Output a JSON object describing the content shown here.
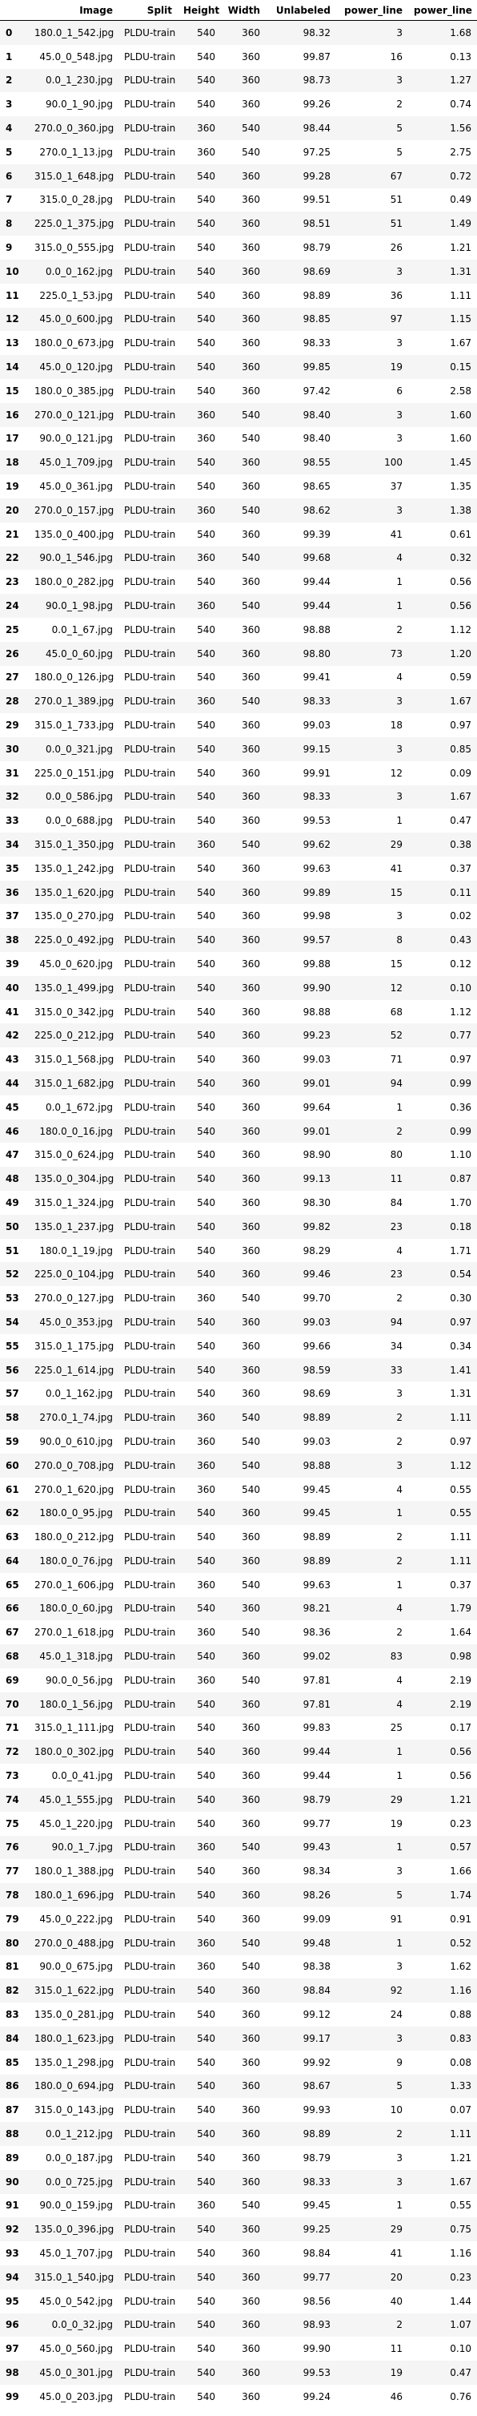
{
  "table": {
    "columns": [
      "",
      "Image",
      "Split",
      "Height",
      "Width",
      "Unlabeled",
      "power_line",
      "power_line"
    ],
    "rows": [
      [
        "0",
        "180.0_1_542.jpg",
        "PLDU-train",
        "540",
        "360",
        "98.32",
        "3",
        "1.68"
      ],
      [
        "1",
        "45.0_0_548.jpg",
        "PLDU-train",
        "540",
        "360",
        "99.87",
        "16",
        "0.13"
      ],
      [
        "2",
        "0.0_1_230.jpg",
        "PLDU-train",
        "540",
        "360",
        "98.73",
        "3",
        "1.27"
      ],
      [
        "3",
        "90.0_1_90.jpg",
        "PLDU-train",
        "540",
        "360",
        "99.26",
        "2",
        "0.74"
      ],
      [
        "4",
        "270.0_0_360.jpg",
        "PLDU-train",
        "360",
        "540",
        "98.44",
        "5",
        "1.56"
      ],
      [
        "5",
        "270.0_1_13.jpg",
        "PLDU-train",
        "360",
        "540",
        "97.25",
        "5",
        "2.75"
      ],
      [
        "6",
        "315.0_1_648.jpg",
        "PLDU-train",
        "540",
        "360",
        "99.28",
        "67",
        "0.72"
      ],
      [
        "7",
        "315.0_0_28.jpg",
        "PLDU-train",
        "540",
        "360",
        "99.51",
        "51",
        "0.49"
      ],
      [
        "8",
        "225.0_1_375.jpg",
        "PLDU-train",
        "540",
        "360",
        "98.51",
        "51",
        "1.49"
      ],
      [
        "9",
        "315.0_0_555.jpg",
        "PLDU-train",
        "540",
        "360",
        "98.79",
        "26",
        "1.21"
      ],
      [
        "10",
        "0.0_0_162.jpg",
        "PLDU-train",
        "540",
        "360",
        "98.69",
        "3",
        "1.31"
      ],
      [
        "11",
        "225.0_1_53.jpg",
        "PLDU-train",
        "540",
        "360",
        "98.89",
        "36",
        "1.11"
      ],
      [
        "12",
        "45.0_0_600.jpg",
        "PLDU-train",
        "540",
        "360",
        "98.85",
        "97",
        "1.15"
      ],
      [
        "13",
        "180.0_0_673.jpg",
        "PLDU-train",
        "540",
        "360",
        "98.33",
        "3",
        "1.67"
      ],
      [
        "14",
        "45.0_0_120.jpg",
        "PLDU-train",
        "540",
        "360",
        "99.85",
        "19",
        "0.15"
      ],
      [
        "15",
        "180.0_0_385.jpg",
        "PLDU-train",
        "540",
        "360",
        "97.42",
        "6",
        "2.58"
      ],
      [
        "16",
        "270.0_0_121.jpg",
        "PLDU-train",
        "360",
        "540",
        "98.40",
        "3",
        "1.60"
      ],
      [
        "17",
        "90.0_0_121.jpg",
        "PLDU-train",
        "360",
        "540",
        "98.40",
        "3",
        "1.60"
      ],
      [
        "18",
        "45.0_1_709.jpg",
        "PLDU-train",
        "540",
        "360",
        "98.55",
        "100",
        "1.45"
      ],
      [
        "19",
        "45.0_0_361.jpg",
        "PLDU-train",
        "540",
        "360",
        "98.65",
        "37",
        "1.35"
      ],
      [
        "20",
        "270.0_0_157.jpg",
        "PLDU-train",
        "360",
        "540",
        "98.62",
        "3",
        "1.38"
      ],
      [
        "21",
        "135.0_0_400.jpg",
        "PLDU-train",
        "540",
        "360",
        "99.39",
        "41",
        "0.61"
      ],
      [
        "22",
        "90.0_1_546.jpg",
        "PLDU-train",
        "360",
        "540",
        "99.68",
        "4",
        "0.32"
      ],
      [
        "23",
        "180.0_0_282.jpg",
        "PLDU-train",
        "540",
        "360",
        "99.44",
        "1",
        "0.56"
      ],
      [
        "24",
        "90.0_1_98.jpg",
        "PLDU-train",
        "360",
        "540",
        "99.44",
        "1",
        "0.56"
      ],
      [
        "25",
        "0.0_1_67.jpg",
        "PLDU-train",
        "540",
        "360",
        "98.88",
        "2",
        "1.12"
      ],
      [
        "26",
        "45.0_0_60.jpg",
        "PLDU-train",
        "540",
        "360",
        "98.80",
        "73",
        "1.20"
      ],
      [
        "27",
        "180.0_0_126.jpg",
        "PLDU-train",
        "540",
        "360",
        "99.41",
        "4",
        "0.59"
      ],
      [
        "28",
        "270.0_1_389.jpg",
        "PLDU-train",
        "360",
        "540",
        "98.33",
        "3",
        "1.67"
      ],
      [
        "29",
        "315.0_1_733.jpg",
        "PLDU-train",
        "540",
        "360",
        "99.03",
        "18",
        "0.97"
      ],
      [
        "30",
        "0.0_0_321.jpg",
        "PLDU-train",
        "540",
        "360",
        "99.15",
        "3",
        "0.85"
      ],
      [
        "31",
        "225.0_0_151.jpg",
        "PLDU-train",
        "540",
        "360",
        "99.91",
        "12",
        "0.09"
      ],
      [
        "32",
        "0.0_0_586.jpg",
        "PLDU-train",
        "540",
        "360",
        "98.33",
        "3",
        "1.67"
      ],
      [
        "33",
        "0.0_0_688.jpg",
        "PLDU-train",
        "540",
        "360",
        "99.53",
        "1",
        "0.47"
      ],
      [
        "34",
        "315.0_1_350.jpg",
        "PLDU-train",
        "360",
        "540",
        "99.62",
        "29",
        "0.38"
      ],
      [
        "35",
        "135.0_1_242.jpg",
        "PLDU-train",
        "540",
        "360",
        "99.63",
        "41",
        "0.37"
      ],
      [
        "36",
        "135.0_1_620.jpg",
        "PLDU-train",
        "540",
        "360",
        "99.89",
        "15",
        "0.11"
      ],
      [
        "37",
        "135.0_0_270.jpg",
        "PLDU-train",
        "540",
        "360",
        "99.98",
        "3",
        "0.02"
      ],
      [
        "38",
        "225.0_0_492.jpg",
        "PLDU-train",
        "540",
        "360",
        "99.57",
        "8",
        "0.43"
      ],
      [
        "39",
        "45.0_0_620.jpg",
        "PLDU-train",
        "540",
        "360",
        "99.88",
        "15",
        "0.12"
      ],
      [
        "40",
        "135.0_1_499.jpg",
        "PLDU-train",
        "540",
        "360",
        "99.90",
        "12",
        "0.10"
      ],
      [
        "41",
        "315.0_0_342.jpg",
        "PLDU-train",
        "540",
        "360",
        "98.88",
        "68",
        "1.12"
      ],
      [
        "42",
        "225.0_0_212.jpg",
        "PLDU-train",
        "540",
        "360",
        "99.23",
        "52",
        "0.77"
      ],
      [
        "43",
        "315.0_1_568.jpg",
        "PLDU-train",
        "540",
        "360",
        "99.03",
        "71",
        "0.97"
      ],
      [
        "44",
        "315.0_1_682.jpg",
        "PLDU-train",
        "540",
        "360",
        "99.01",
        "94",
        "0.99"
      ],
      [
        "45",
        "0.0_1_672.jpg",
        "PLDU-train",
        "540",
        "360",
        "99.64",
        "1",
        "0.36"
      ],
      [
        "46",
        "180.0_0_16.jpg",
        "PLDU-train",
        "540",
        "360",
        "99.01",
        "2",
        "0.99"
      ],
      [
        "47",
        "315.0_0_624.jpg",
        "PLDU-train",
        "540",
        "360",
        "98.90",
        "80",
        "1.10"
      ],
      [
        "48",
        "135.0_0_304.jpg",
        "PLDU-train",
        "540",
        "360",
        "99.13",
        "11",
        "0.87"
      ],
      [
        "49",
        "315.0_1_324.jpg",
        "PLDU-train",
        "540",
        "360",
        "98.30",
        "84",
        "1.70"
      ],
      [
        "50",
        "135.0_1_237.jpg",
        "PLDU-train",
        "540",
        "360",
        "99.82",
        "23",
        "0.18"
      ],
      [
        "51",
        "180.0_1_19.jpg",
        "PLDU-train",
        "540",
        "360",
        "98.29",
        "4",
        "1.71"
      ],
      [
        "52",
        "225.0_0_104.jpg",
        "PLDU-train",
        "540",
        "360",
        "99.46",
        "23",
        "0.54"
      ],
      [
        "53",
        "270.0_0_127.jpg",
        "PLDU-train",
        "360",
        "540",
        "99.70",
        "2",
        "0.30"
      ],
      [
        "54",
        "45.0_0_353.jpg",
        "PLDU-train",
        "540",
        "360",
        "99.03",
        "94",
        "0.97"
      ],
      [
        "55",
        "315.0_1_175.jpg",
        "PLDU-train",
        "540",
        "360",
        "99.66",
        "34",
        "0.34"
      ],
      [
        "56",
        "225.0_1_614.jpg",
        "PLDU-train",
        "540",
        "360",
        "98.59",
        "33",
        "1.41"
      ],
      [
        "57",
        "0.0_1_162.jpg",
        "PLDU-train",
        "540",
        "360",
        "98.69",
        "3",
        "1.31"
      ],
      [
        "58",
        "270.0_1_74.jpg",
        "PLDU-train",
        "360",
        "540",
        "98.89",
        "2",
        "1.11"
      ],
      [
        "59",
        "90.0_0_610.jpg",
        "PLDU-train",
        "360",
        "540",
        "99.03",
        "2",
        "0.97"
      ],
      [
        "60",
        "270.0_0_708.jpg",
        "PLDU-train",
        "360",
        "540",
        "98.88",
        "3",
        "1.12"
      ],
      [
        "61",
        "270.0_1_620.jpg",
        "PLDU-train",
        "360",
        "540",
        "99.45",
        "4",
        "0.55"
      ],
      [
        "62",
        "180.0_0_95.jpg",
        "PLDU-train",
        "540",
        "360",
        "99.45",
        "1",
        "0.55"
      ],
      [
        "63",
        "180.0_0_212.jpg",
        "PLDU-train",
        "540",
        "360",
        "98.89",
        "2",
        "1.11"
      ],
      [
        "64",
        "180.0_0_76.jpg",
        "PLDU-train",
        "540",
        "360",
        "98.89",
        "2",
        "1.11"
      ],
      [
        "65",
        "270.0_1_606.jpg",
        "PLDU-train",
        "360",
        "540",
        "99.63",
        "1",
        "0.37"
      ],
      [
        "66",
        "180.0_0_60.jpg",
        "PLDU-train",
        "540",
        "360",
        "98.21",
        "4",
        "1.79"
      ],
      [
        "67",
        "270.0_1_618.jpg",
        "PLDU-train",
        "360",
        "540",
        "98.36",
        "2",
        "1.64"
      ],
      [
        "68",
        "45.0_1_318.jpg",
        "PLDU-train",
        "540",
        "360",
        "99.02",
        "83",
        "0.98"
      ],
      [
        "69",
        "90.0_0_56.jpg",
        "PLDU-train",
        "360",
        "540",
        "97.81",
        "4",
        "2.19"
      ],
      [
        "70",
        "180.0_1_56.jpg",
        "PLDU-train",
        "540",
        "360",
        "97.81",
        "4",
        "2.19"
      ],
      [
        "71",
        "315.0_1_111.jpg",
        "PLDU-train",
        "540",
        "360",
        "99.83",
        "25",
        "0.17"
      ],
      [
        "72",
        "180.0_0_302.jpg",
        "PLDU-train",
        "540",
        "360",
        "99.44",
        "1",
        "0.56"
      ],
      [
        "73",
        "0.0_0_41.jpg",
        "PLDU-train",
        "540",
        "360",
        "99.44",
        "1",
        "0.56"
      ],
      [
        "74",
        "45.0_1_555.jpg",
        "PLDU-train",
        "540",
        "360",
        "98.79",
        "29",
        "1.21"
      ],
      [
        "75",
        "45.0_1_220.jpg",
        "PLDU-train",
        "540",
        "360",
        "99.77",
        "19",
        "0.23"
      ],
      [
        "76",
        "90.0_1_7.jpg",
        "PLDU-train",
        "360",
        "540",
        "99.43",
        "1",
        "0.57"
      ],
      [
        "77",
        "180.0_1_388.jpg",
        "PLDU-train",
        "540",
        "360",
        "98.34",
        "3",
        "1.66"
      ],
      [
        "78",
        "180.0_1_696.jpg",
        "PLDU-train",
        "540",
        "360",
        "98.26",
        "5",
        "1.74"
      ],
      [
        "79",
        "45.0_0_222.jpg",
        "PLDU-train",
        "540",
        "360",
        "99.09",
        "91",
        "0.91"
      ],
      [
        "80",
        "270.0_0_488.jpg",
        "PLDU-train",
        "360",
        "540",
        "99.48",
        "1",
        "0.52"
      ],
      [
        "81",
        "90.0_0_675.jpg",
        "PLDU-train",
        "360",
        "540",
        "98.38",
        "3",
        "1.62"
      ],
      [
        "82",
        "315.0_1_622.jpg",
        "PLDU-train",
        "540",
        "360",
        "98.84",
        "92",
        "1.16"
      ],
      [
        "83",
        "135.0_0_281.jpg",
        "PLDU-train",
        "540",
        "360",
        "99.12",
        "24",
        "0.88"
      ],
      [
        "84",
        "180.0_1_623.jpg",
        "PLDU-train",
        "540",
        "360",
        "99.17",
        "3",
        "0.83"
      ],
      [
        "85",
        "135.0_1_298.jpg",
        "PLDU-train",
        "540",
        "360",
        "99.92",
        "9",
        "0.08"
      ],
      [
        "86",
        "180.0_0_694.jpg",
        "PLDU-train",
        "540",
        "360",
        "98.67",
        "5",
        "1.33"
      ],
      [
        "87",
        "315.0_0_143.jpg",
        "PLDU-train",
        "540",
        "360",
        "99.93",
        "10",
        "0.07"
      ],
      [
        "88",
        "0.0_1_212.jpg",
        "PLDU-train",
        "540",
        "360",
        "98.89",
        "2",
        "1.11"
      ],
      [
        "89",
        "0.0_0_187.jpg",
        "PLDU-train",
        "540",
        "360",
        "98.79",
        "3",
        "1.21"
      ],
      [
        "90",
        "0.0_0_725.jpg",
        "PLDU-train",
        "540",
        "360",
        "98.33",
        "3",
        "1.67"
      ],
      [
        "91",
        "90.0_0_159.jpg",
        "PLDU-train",
        "360",
        "540",
        "99.45",
        "1",
        "0.55"
      ],
      [
        "92",
        "135.0_0_396.jpg",
        "PLDU-train",
        "540",
        "360",
        "99.25",
        "29",
        "0.75"
      ],
      [
        "93",
        "45.0_1_707.jpg",
        "PLDU-train",
        "540",
        "360",
        "98.84",
        "41",
        "1.16"
      ],
      [
        "94",
        "315.0_1_540.jpg",
        "PLDU-train",
        "540",
        "360",
        "99.77",
        "20",
        "0.23"
      ],
      [
        "95",
        "45.0_0_542.jpg",
        "PLDU-train",
        "540",
        "360",
        "98.56",
        "40",
        "1.44"
      ],
      [
        "96",
        "0.0_0_32.jpg",
        "PLDU-train",
        "540",
        "360",
        "98.93",
        "2",
        "1.07"
      ],
      [
        "97",
        "45.0_0_560.jpg",
        "PLDU-train",
        "540",
        "360",
        "99.90",
        "11",
        "0.10"
      ],
      [
        "98",
        "45.0_0_301.jpg",
        "PLDU-train",
        "540",
        "360",
        "99.53",
        "19",
        "0.47"
      ],
      [
        "99",
        "45.0_0_203.jpg",
        "PLDU-train",
        "540",
        "360",
        "99.24",
        "46",
        "0.76"
      ]
    ]
  }
}
